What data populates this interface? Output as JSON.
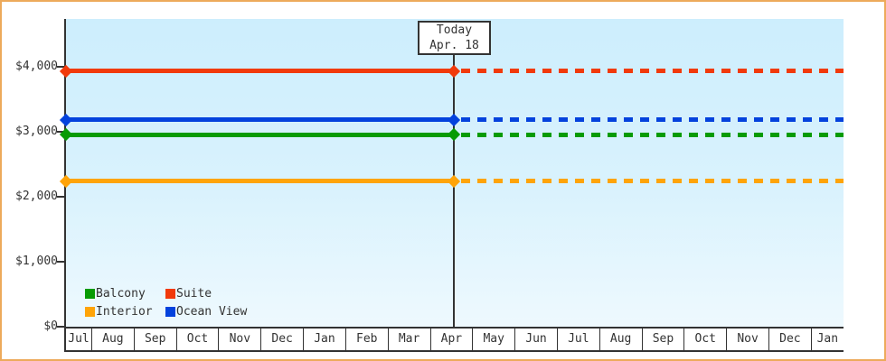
{
  "chart_data": {
    "type": "line",
    "title": "",
    "x": {
      "categories": [
        "Jul",
        "Aug",
        "Sep",
        "Oct",
        "Nov",
        "Dec",
        "Jan",
        "Feb",
        "Mar",
        "Apr",
        "May",
        "Jun",
        "Jul",
        "Aug",
        "Sep",
        "Oct",
        "Nov",
        "Dec",
        "Jan"
      ]
    },
    "y": {
      "tick_labels": [
        "$0",
        "$1,000",
        "$2,000",
        "$3,000",
        "$4,000"
      ],
      "tick_values": [
        0,
        1000,
        2000,
        3000,
        4000
      ],
      "ylim": [
        0,
        4000
      ],
      "unit": "USD"
    },
    "today": {
      "label_line1": "Today",
      "label_line2": "Apr. 18",
      "month": "Apr",
      "month_index": 9
    },
    "series": [
      {
        "name": "Suite",
        "color": "#f13a0b",
        "value": 3925,
        "style": "solid-before-today-dashed-after"
      },
      {
        "name": "Ocean View",
        "color": "#0442dd",
        "value": 3180,
        "style": "solid-before-today-dashed-after"
      },
      {
        "name": "Balcony",
        "color": "#089b04",
        "value": 2950,
        "style": "solid-before-today-dashed-after"
      },
      {
        "name": "Interior",
        "color": "#ffa408",
        "value": 2235,
        "style": "solid-before-today-dashed-after"
      }
    ],
    "legend": {
      "position": "bottom-left-inside-plot",
      "rows": [
        [
          {
            "label": "Balcony",
            "color": "#089b04"
          },
          {
            "label": "Suite",
            "color": "#f13a0b"
          }
        ],
        [
          {
            "label": "Interior",
            "color": "#ffa408"
          },
          {
            "label": "Ocean View",
            "color": "#0442dd"
          }
        ]
      ]
    },
    "grid": false,
    "legend_labels_flat": [
      "Balcony",
      "Suite",
      "Interior",
      "Ocean View"
    ]
  },
  "frame": {
    "outer_border_color": "#edaa5b",
    "background": "#ffffff",
    "plot_gradient_top": "#cdeefd",
    "plot_gradient_bottom": "#eef9fe",
    "axis_color": "#333333",
    "text_color": "#333333"
  }
}
